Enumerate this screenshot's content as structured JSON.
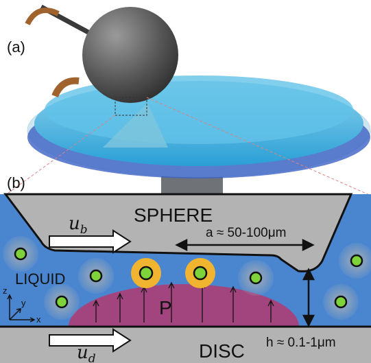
{
  "panel_a": {
    "label": "(a)"
  },
  "panel_b": {
    "label": "(b)",
    "sphere_label": "SPHERE",
    "liquid_label": "LIQUID",
    "disc_label": "DISC",
    "pressure_label": "P",
    "sphere_velocity": {
      "symbol": "u",
      "subscript": "b"
    },
    "disc_velocity": {
      "symbol": "u",
      "subscript": "d"
    },
    "contact_size": "a ≈ 50-100μm",
    "film_thickness": "h ≈ 0.1-1μm",
    "axes": {
      "z": "z",
      "y": "y",
      "x": "x"
    }
  }
}
